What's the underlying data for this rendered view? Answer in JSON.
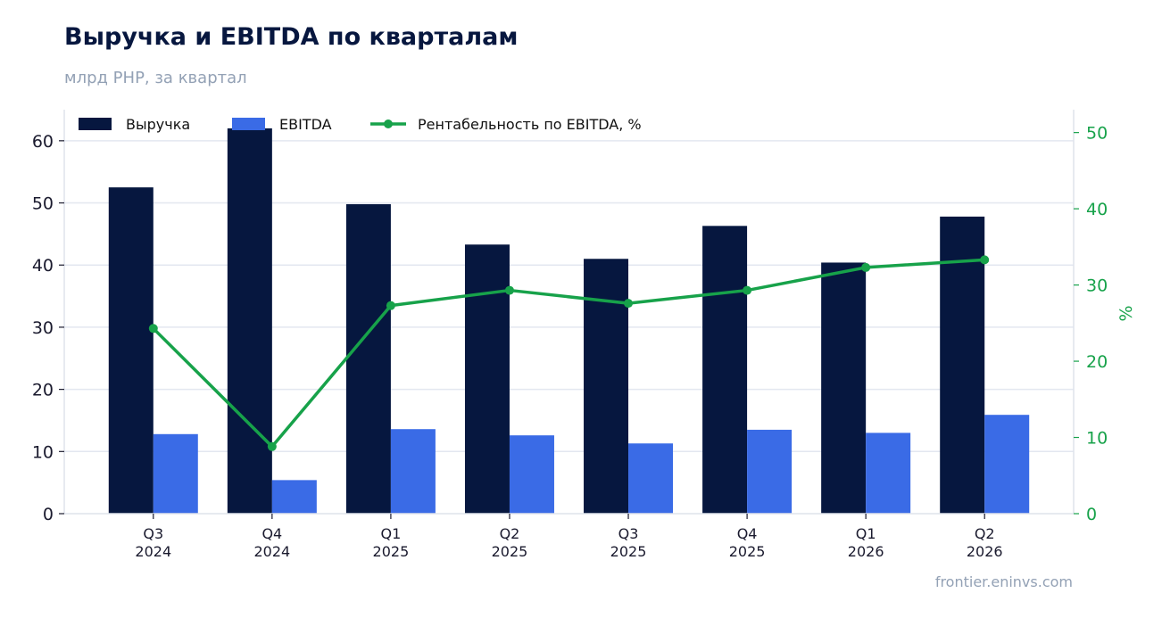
{
  "header": {
    "title": "Выручка и EBITDA по кварталам",
    "subtitle": "млрд РНР, за квартал"
  },
  "footer": {
    "source": "frontier.eninvs.com"
  },
  "colors": {
    "revenue": "#06173f",
    "ebitda": "#3a6be6",
    "margin": "#17a24a",
    "grid": "#e3e7f0",
    "axis_text": "#1a1a2e"
  },
  "chart_data": {
    "type": "bar",
    "categories": [
      "Q3\n2024",
      "Q4\n2024",
      "Q1\n2025",
      "Q2\n2025",
      "Q3\n2025",
      "Q4\n2025",
      "Q1\n2026",
      "Q2\n2026"
    ],
    "series": [
      {
        "name": "Выручка",
        "type": "bar",
        "axis": "left",
        "values": [
          52.5,
          62.0,
          49.8,
          43.3,
          41.0,
          46.3,
          40.4,
          47.8
        ]
      },
      {
        "name": "EBITDA",
        "type": "bar",
        "axis": "left",
        "values": [
          12.8,
          5.4,
          13.6,
          12.6,
          11.3,
          13.5,
          13.0,
          15.9
        ]
      },
      {
        "name": "Рентабельность по EBITDA, %",
        "type": "line",
        "axis": "right",
        "values": [
          24.3,
          8.8,
          27.3,
          29.3,
          27.6,
          29.3,
          32.3,
          33.3
        ]
      }
    ],
    "y_left": {
      "ylim": [
        0,
        65
      ],
      "ticks": [
        0,
        10,
        20,
        30,
        40,
        50,
        60
      ],
      "label": ""
    },
    "y_right": {
      "ylim": [
        0,
        53
      ],
      "ticks": [
        0,
        10,
        20,
        30,
        40,
        50
      ],
      "label": "%"
    },
    "grid": true,
    "legend_placement": "top-left"
  }
}
